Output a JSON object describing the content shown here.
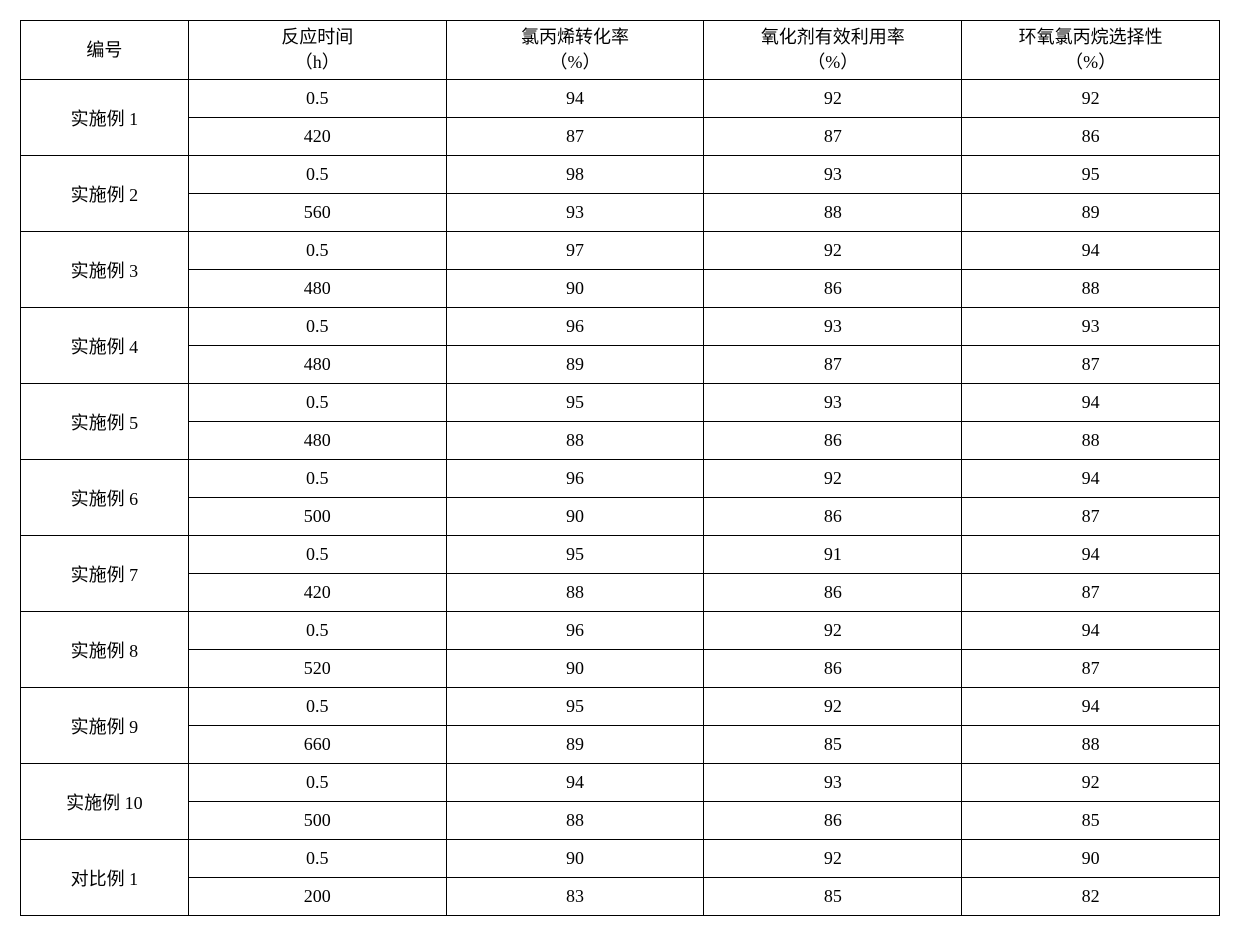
{
  "table": {
    "columns": [
      {
        "line1": "编号",
        "line2": ""
      },
      {
        "line1": "反应时间",
        "line2": "（h）"
      },
      {
        "line1": "氯丙烯转化率",
        "line2": "（%）"
      },
      {
        "line1": "氧化剂有效利用率",
        "line2": "（%）"
      },
      {
        "line1": "环氧氯丙烷选择性",
        "line2": "（%）"
      }
    ],
    "groups": [
      {
        "label": "实施例 1",
        "rows": [
          {
            "time": "0.5",
            "conv": "94",
            "util": "92",
            "sel": "92"
          },
          {
            "time": "420",
            "conv": "87",
            "util": "87",
            "sel": "86"
          }
        ]
      },
      {
        "label": "实施例 2",
        "rows": [
          {
            "time": "0.5",
            "conv": "98",
            "util": "93",
            "sel": "95"
          },
          {
            "time": "560",
            "conv": "93",
            "util": "88",
            "sel": "89"
          }
        ]
      },
      {
        "label": "实施例 3",
        "rows": [
          {
            "time": "0.5",
            "conv": "97",
            "util": "92",
            "sel": "94"
          },
          {
            "time": "480",
            "conv": "90",
            "util": "86",
            "sel": "88"
          }
        ]
      },
      {
        "label": "实施例 4",
        "rows": [
          {
            "time": "0.5",
            "conv": "96",
            "util": "93",
            "sel": "93"
          },
          {
            "time": "480",
            "conv": "89",
            "util": "87",
            "sel": "87"
          }
        ]
      },
      {
        "label": "实施例 5",
        "rows": [
          {
            "time": "0.5",
            "conv": "95",
            "util": "93",
            "sel": "94"
          },
          {
            "time": "480",
            "conv": "88",
            "util": "86",
            "sel": "88"
          }
        ]
      },
      {
        "label": "实施例 6",
        "rows": [
          {
            "time": "0.5",
            "conv": "96",
            "util": "92",
            "sel": "94"
          },
          {
            "time": "500",
            "conv": "90",
            "util": "86",
            "sel": "87"
          }
        ]
      },
      {
        "label": "实施例 7",
        "rows": [
          {
            "time": "0.5",
            "conv": "95",
            "util": "91",
            "sel": "94"
          },
          {
            "time": "420",
            "conv": "88",
            "util": "86",
            "sel": "87"
          }
        ]
      },
      {
        "label": "实施例 8",
        "rows": [
          {
            "time": "0.5",
            "conv": "96",
            "util": "92",
            "sel": "94"
          },
          {
            "time": "520",
            "conv": "90",
            "util": "86",
            "sel": "87"
          }
        ]
      },
      {
        "label": "实施例 9",
        "rows": [
          {
            "time": "0.5",
            "conv": "95",
            "util": "92",
            "sel": "94"
          },
          {
            "time": "660",
            "conv": "89",
            "util": "85",
            "sel": "88"
          }
        ]
      },
      {
        "label": "实施例 10",
        "rows": [
          {
            "time": "0.5",
            "conv": "94",
            "util": "93",
            "sel": "92"
          },
          {
            "time": "500",
            "conv": "88",
            "util": "86",
            "sel": "85"
          }
        ]
      },
      {
        "label": "对比例 1",
        "rows": [
          {
            "time": "0.5",
            "conv": "90",
            "util": "92",
            "sel": "90"
          },
          {
            "time": "200",
            "conv": "83",
            "util": "85",
            "sel": "82"
          }
        ]
      }
    ]
  }
}
